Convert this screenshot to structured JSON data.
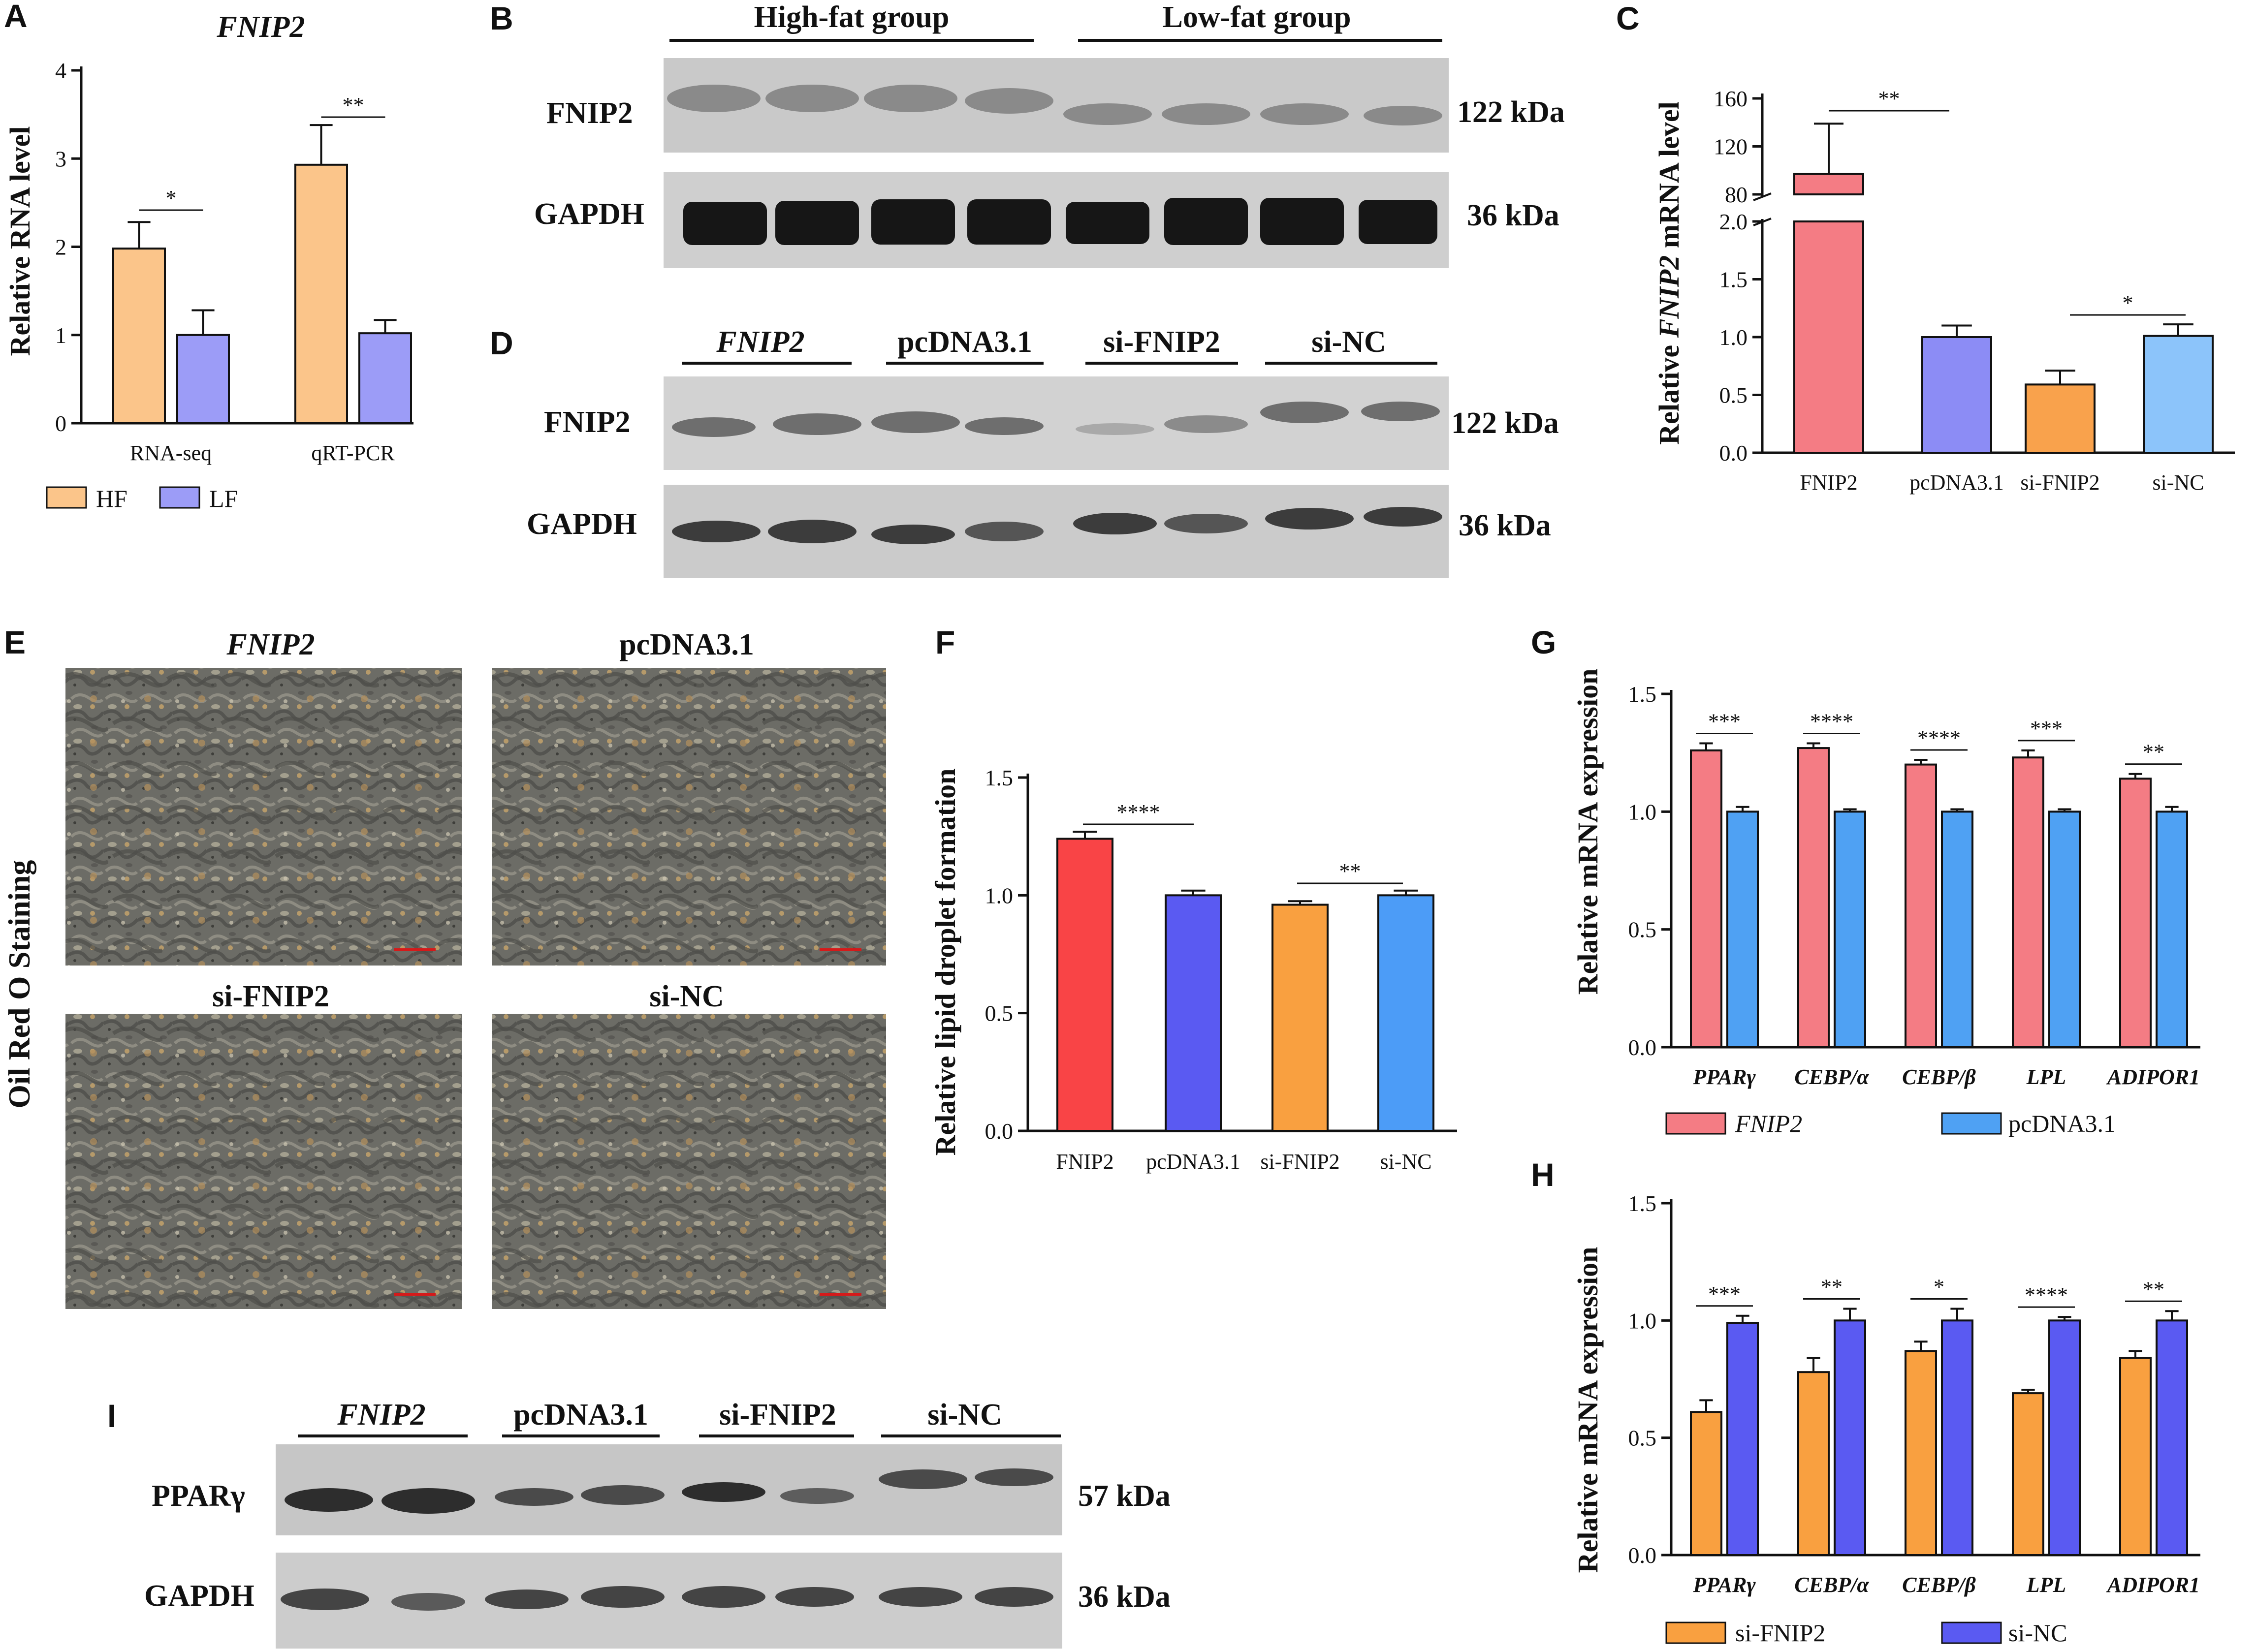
{
  "panels": {
    "A": "A",
    "B": "B",
    "C": "C",
    "D": "D",
    "E": "E",
    "F": "F",
    "G": "G",
    "H": "H",
    "I": "I"
  },
  "panel_A": {
    "title": "FNIP2",
    "ylabel": "Relative RNA level",
    "legend": [
      "HF",
      "LF"
    ],
    "colors": {
      "HF": "#FBC58A",
      "LF": "#9C9CF7"
    }
  },
  "panel_B": {
    "groups": [
      "High-fat group",
      "Low-fat group"
    ],
    "rows": [
      {
        "label": "FNIP2",
        "size": "122 kDa"
      },
      {
        "label": "GAPDH",
        "size": "36 kDa"
      }
    ]
  },
  "panel_C": {
    "ylabel_pre": "Relative ",
    "ylabel_ital": "FNIP2",
    "ylabel_post": " mRNA level",
    "colors": [
      "#F47C84",
      "#8C8CF5",
      "#F9A24C",
      "#8CC4FA"
    ]
  },
  "panel_D": {
    "groups": [
      "FNIP2",
      "pcDNA3.1",
      "si-FNIP2",
      "si-NC"
    ],
    "rows": [
      {
        "label": "FNIP2",
        "size": "122 kDa"
      },
      {
        "label": "GAPDH",
        "size": "36 kDa"
      }
    ]
  },
  "panel_E": {
    "side_label": "Oil Red O Staining",
    "images": [
      "FNIP2",
      "pcDNA3.1",
      "si-FNIP2",
      "si-NC"
    ]
  },
  "panel_F": {
    "ylabel": "Relative lipid droplet formation",
    "colors": [
      "#F94446",
      "#5A5AF2",
      "#F9A040",
      "#4C9CF7"
    ]
  },
  "panel_G": {
    "ylabel": "Relative mRNA expression",
    "legend": [
      "FNIP2",
      "pcDNA3.1"
    ],
    "colors": {
      "FNIP2": "#F47C84",
      "pcDNA3.1": "#4FA1F3"
    }
  },
  "panel_H": {
    "ylabel": "Relative mRNA expression",
    "legend": [
      "si-FNIP2",
      "si-NC"
    ],
    "colors": {
      "si-FNIP2": "#F9A040",
      "si-NC": "#5A5AF2"
    }
  },
  "panel_I": {
    "groups": [
      "FNIP2",
      "pcDNA3.1",
      "si-FNIP2",
      "si-NC"
    ],
    "rows": [
      {
        "label": "PPARγ",
        "size": "57 kDa"
      },
      {
        "label": "GAPDH",
        "size": "36 kDa"
      }
    ]
  },
  "chart_data": [
    {
      "panel": "A",
      "type": "bar",
      "title": "FNIP2",
      "ylabel": "Relative RNA level",
      "categories": [
        "RNA-seq",
        "qRT-PCR"
      ],
      "ylim": [
        0,
        4
      ],
      "yticks": [
        "0",
        "1",
        "2",
        "3",
        "4"
      ],
      "series": [
        {
          "name": "HF",
          "values": [
            1.98,
            2.93
          ],
          "errors": [
            0.3,
            0.45
          ]
        },
        {
          "name": "LF",
          "values": [
            1.0,
            1.02
          ],
          "errors": [
            0.28,
            0.15
          ]
        }
      ],
      "significance": [
        "*",
        "**"
      ],
      "legend_position": "bottom"
    },
    {
      "panel": "C",
      "type": "bar",
      "ylabel": "Relative FNIP2 mRNA level",
      "categories": [
        "FNIP2",
        "pcDNA3.1",
        "si-FNIP2",
        "si-NC"
      ],
      "values": [
        97,
        1.0,
        0.59,
        1.01
      ],
      "errors": [
        42,
        0.1,
        0.12,
        0.1
      ],
      "y_axis_break": [
        2.0,
        80
      ],
      "yticks_lower": [
        "0.0",
        "0.5",
        "1.0",
        "1.5",
        "2.0"
      ],
      "yticks_upper": [
        "80",
        "120",
        "160"
      ],
      "significance": [
        {
          "between": [
            "FNIP2",
            "pcDNA3.1"
          ],
          "label": "**"
        },
        {
          "between": [
            "si-FNIP2",
            "si-NC"
          ],
          "label": "*"
        }
      ]
    },
    {
      "panel": "F",
      "type": "bar",
      "ylabel": "Relative lipid droplet formation",
      "categories": [
        "FNIP2",
        "pcDNA3.1",
        "si-FNIP2",
        "si-NC"
      ],
      "values": [
        1.24,
        1.0,
        0.96,
        1.0
      ],
      "errors": [
        0.03,
        0.02,
        0.015,
        0.02
      ],
      "ylim": [
        0,
        1.5
      ],
      "yticks": [
        "0.0",
        "0.5",
        "1.0",
        "1.5"
      ],
      "significance": [
        {
          "between": [
            "FNIP2",
            "pcDNA3.1"
          ],
          "label": "****"
        },
        {
          "between": [
            "si-FNIP2",
            "si-NC"
          ],
          "label": "**"
        }
      ]
    },
    {
      "panel": "G",
      "type": "bar",
      "ylabel": "Relative mRNA expression",
      "categories": [
        "PPARγ",
        "CEBP/α",
        "CEBP/β",
        "LPL",
        "ADIPOR1"
      ],
      "ylim": [
        0,
        1.5
      ],
      "yticks": [
        "0.0",
        "0.5",
        "1.0",
        "1.5"
      ],
      "series": [
        {
          "name": "FNIP2",
          "values": [
            1.26,
            1.27,
            1.2,
            1.23,
            1.14
          ],
          "errors": [
            0.03,
            0.02,
            0.02,
            0.03,
            0.02
          ]
        },
        {
          "name": "pcDNA3.1",
          "values": [
            1.0,
            1.0,
            1.0,
            1.0,
            1.0
          ],
          "errors": [
            0.02,
            0.01,
            0.01,
            0.01,
            0.02
          ]
        }
      ],
      "significance": [
        "***",
        "****",
        "****",
        "***",
        "**"
      ],
      "legend_position": "bottom"
    },
    {
      "panel": "H",
      "type": "bar",
      "ylabel": "Relative mRNA expression",
      "categories": [
        "PPARγ",
        "CEBP/α",
        "CEBP/β",
        "LPL",
        "ADIPOR1"
      ],
      "ylim": [
        0,
        1.5
      ],
      "yticks": [
        "0.0",
        "0.5",
        "1.0",
        "1.5"
      ],
      "series": [
        {
          "name": "si-FNIP2",
          "values": [
            0.61,
            0.78,
            0.87,
            0.69,
            0.84
          ],
          "errors": [
            0.05,
            0.06,
            0.04,
            0.015,
            0.03
          ]
        },
        {
          "name": "si-NC",
          "values": [
            0.99,
            1.0,
            1.0,
            1.0,
            1.0
          ],
          "errors": [
            0.03,
            0.05,
            0.05,
            0.015,
            0.04
          ]
        }
      ],
      "significance": [
        "***",
        "**",
        "*",
        "****",
        "**"
      ],
      "legend_position": "bottom"
    }
  ]
}
